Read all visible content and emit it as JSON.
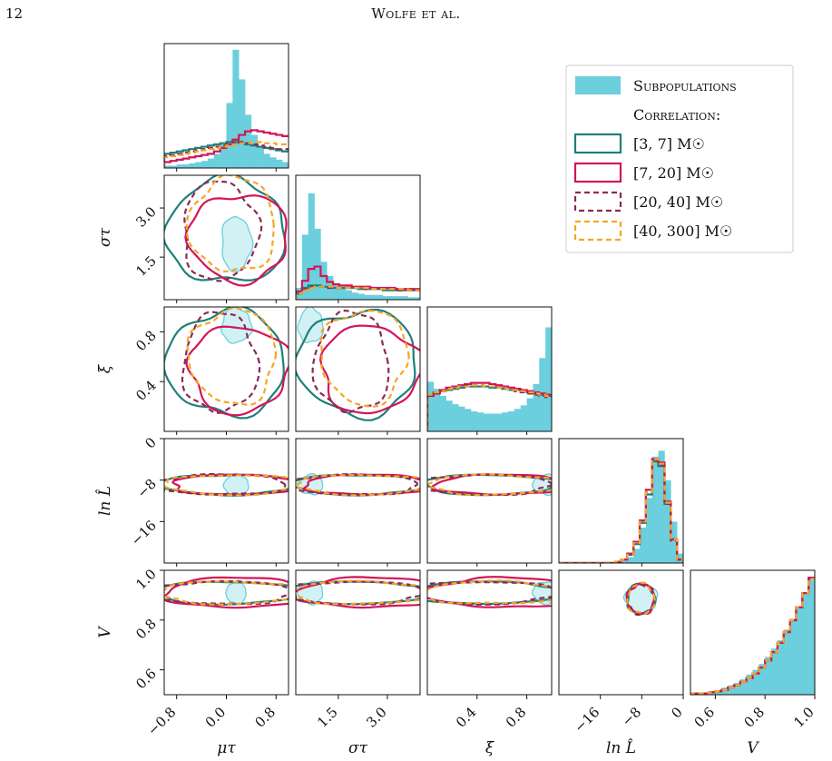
{
  "page": {
    "number": "12",
    "running_head": "Wolfe et al."
  },
  "chart_data": {
    "type": "corner",
    "parameters": [
      {
        "key": "mu_tau",
        "label": "μτ",
        "range": [
          -1.0,
          1.0
        ],
        "ticks": [
          -0.8,
          0.0,
          0.8
        ],
        "tick_labels": [
          "−0.8",
          "0.0",
          "0.8"
        ]
      },
      {
        "key": "sigma_tau",
        "label": "στ",
        "range": [
          0.2,
          4.0
        ],
        "ticks": [
          1.5,
          3.0
        ],
        "tick_labels": [
          "1.5",
          "3.0"
        ]
      },
      {
        "key": "xi",
        "label": "ξ",
        "range": [
          0.0,
          1.0
        ],
        "ticks": [
          0.4,
          0.8
        ],
        "tick_labels": [
          "0.4",
          "0.8"
        ]
      },
      {
        "key": "lnL",
        "label": "ln L̂",
        "range": [
          -24,
          0
        ],
        "ticks": [
          -16,
          -8,
          0
        ],
        "tick_labels": [
          "−16",
          "−8",
          "0"
        ]
      },
      {
        "key": "nu",
        "label": "V",
        "range": [
          0.5,
          1.0
        ],
        "ticks": [
          0.6,
          0.8,
          1.0
        ],
        "tick_labels": [
          "0.6",
          "0.8",
          "1.0"
        ]
      }
    ],
    "legend": {
      "placement": "top-right",
      "entries": [
        {
          "label": "Subpopulations",
          "style": "filled",
          "color": "#6bcfdd"
        },
        {
          "label": "Correlation:",
          "style": "heading"
        },
        {
          "label": "[3, 7] M☉",
          "style": "solid",
          "color": "#1e8079"
        },
        {
          "label": "[7, 20] M☉",
          "style": "solid",
          "color": "#d4145a"
        },
        {
          "label": "[20, 40] M☉",
          "style": "dashed",
          "color": "#8c2a55"
        },
        {
          "label": "[40, 300] M☉",
          "style": "dashed",
          "color": "#f5a623"
        }
      ]
    },
    "series": [
      {
        "key": "subpop",
        "color": "#6bcfdd",
        "fill": true,
        "dashed": false,
        "marginals": {
          "mu_tau": [
            0.02,
            0.02,
            0.03,
            0.03,
            0.04,
            0.05,
            0.06,
            0.08,
            0.12,
            0.2,
            0.55,
            1.0,
            0.75,
            0.45,
            0.28,
            0.18,
            0.12,
            0.09,
            0.07,
            0.05
          ],
          "sigma_tau": [
            0.1,
            0.55,
            0.9,
            0.6,
            0.32,
            0.2,
            0.14,
            0.1,
            0.08,
            0.06,
            0.05,
            0.04,
            0.04,
            0.04,
            0.03,
            0.03,
            0.03,
            0.03,
            0.02,
            0.02
          ],
          "xi": [
            0.42,
            0.36,
            0.3,
            0.26,
            0.23,
            0.21,
            0.19,
            0.17,
            0.16,
            0.15,
            0.15,
            0.15,
            0.16,
            0.17,
            0.19,
            0.22,
            0.28,
            0.4,
            0.62,
            0.88
          ],
          "lnL": [
            0,
            0,
            0,
            0,
            0,
            0,
            0,
            0,
            0,
            0.01,
            0.02,
            0.05,
            0.12,
            0.3,
            0.55,
            0.9,
            0.95,
            0.7,
            0.35,
            0.08
          ],
          "nu": [
            0.01,
            0.01,
            0.02,
            0.03,
            0.04,
            0.06,
            0.08,
            0.1,
            0.13,
            0.17,
            0.21,
            0.26,
            0.32,
            0.39,
            0.46,
            0.55,
            0.64,
            0.74,
            0.86,
            0.97
          ]
        }
      },
      {
        "key": "c3_7",
        "color": "#1e8079",
        "fill": false,
        "dashed": false,
        "marginals": {
          "mu_tau": [
            0.12,
            0.13,
            0.14,
            0.15,
            0.16,
            0.17,
            0.18,
            0.19,
            0.2,
            0.21,
            0.22,
            0.22,
            0.21,
            0.2,
            0.19,
            0.18,
            0.17,
            0.16,
            0.15,
            0.14
          ],
          "sigma_tau": [
            0.05,
            0.1,
            0.12,
            0.12,
            0.11,
            0.11,
            0.1,
            0.1,
            0.1,
            0.1,
            0.09,
            0.09,
            0.09,
            0.09,
            0.08,
            0.08,
            0.08,
            0.08,
            0.08,
            0.08
          ],
          "xi": [
            0.3,
            0.32,
            0.34,
            0.35,
            0.36,
            0.37,
            0.38,
            0.38,
            0.38,
            0.38,
            0.37,
            0.37,
            0.36,
            0.35,
            0.35,
            0.34,
            0.33,
            0.32,
            0.31,
            0.3
          ],
          "lnL": [
            0,
            0,
            0,
            0,
            0,
            0,
            0,
            0,
            0,
            0.01,
            0.03,
            0.07,
            0.16,
            0.34,
            0.58,
            0.86,
            0.82,
            0.5,
            0.2,
            0.03
          ],
          "nu": [
            0.01,
            0.01,
            0.01,
            0.02,
            0.03,
            0.04,
            0.06,
            0.08,
            0.11,
            0.14,
            0.18,
            0.23,
            0.29,
            0.36,
            0.44,
            0.53,
            0.63,
            0.74,
            0.86,
            0.98
          ]
        }
      },
      {
        "key": "c7_20",
        "color": "#d4145a",
        "fill": false,
        "dashed": false,
        "marginals": {
          "mu_tau": [
            0.05,
            0.06,
            0.07,
            0.08,
            0.09,
            0.1,
            0.11,
            0.12,
            0.14,
            0.17,
            0.2,
            0.24,
            0.28,
            0.31,
            0.32,
            0.31,
            0.3,
            0.29,
            0.28,
            0.27
          ],
          "sigma_tau": [
            0.07,
            0.16,
            0.26,
            0.28,
            0.2,
            0.15,
            0.13,
            0.12,
            0.12,
            0.11,
            0.11,
            0.11,
            0.1,
            0.1,
            0.1,
            0.1,
            0.09,
            0.09,
            0.09,
            0.09
          ],
          "xi": [
            0.31,
            0.33,
            0.35,
            0.37,
            0.38,
            0.39,
            0.4,
            0.41,
            0.41,
            0.41,
            0.4,
            0.39,
            0.38,
            0.37,
            0.36,
            0.35,
            0.34,
            0.33,
            0.32,
            0.31
          ],
          "lnL": [
            0,
            0,
            0,
            0,
            0,
            0,
            0,
            0,
            0,
            0.01,
            0.03,
            0.08,
            0.18,
            0.36,
            0.62,
            0.88,
            0.85,
            0.52,
            0.2,
            0.03
          ],
          "nu": [
            0.01,
            0.01,
            0.01,
            0.02,
            0.03,
            0.04,
            0.06,
            0.08,
            0.11,
            0.14,
            0.18,
            0.23,
            0.29,
            0.36,
            0.44,
            0.53,
            0.63,
            0.74,
            0.86,
            0.99
          ]
        }
      },
      {
        "key": "c20_40",
        "color": "#8c2a55",
        "fill": false,
        "dashed": true,
        "marginals": {
          "mu_tau": [
            0.1,
            0.11,
            0.12,
            0.13,
            0.14,
            0.15,
            0.16,
            0.17,
            0.18,
            0.19,
            0.2,
            0.21,
            0.22,
            0.21,
            0.2,
            0.19,
            0.18,
            0.17,
            0.16,
            0.16
          ],
          "sigma_tau": [
            0.05,
            0.09,
            0.11,
            0.11,
            0.11,
            0.1,
            0.1,
            0.1,
            0.1,
            0.1,
            0.1,
            0.09,
            0.09,
            0.09,
            0.09,
            0.09,
            0.08,
            0.08,
            0.08,
            0.08
          ],
          "xi": [
            0.3,
            0.32,
            0.34,
            0.36,
            0.37,
            0.38,
            0.39,
            0.39,
            0.39,
            0.38,
            0.38,
            0.37,
            0.36,
            0.35,
            0.34,
            0.33,
            0.32,
            0.31,
            0.3,
            0.29
          ],
          "lnL": [
            0,
            0,
            0,
            0,
            0,
            0,
            0,
            0,
            0,
            0.01,
            0.03,
            0.07,
            0.17,
            0.35,
            0.6,
            0.87,
            0.83,
            0.5,
            0.19,
            0.03
          ],
          "nu": [
            0.01,
            0.01,
            0.01,
            0.02,
            0.03,
            0.04,
            0.06,
            0.08,
            0.11,
            0.14,
            0.18,
            0.23,
            0.29,
            0.36,
            0.44,
            0.53,
            0.63,
            0.74,
            0.86,
            0.98
          ]
        }
      },
      {
        "key": "c40_300",
        "color": "#f5a623",
        "fill": false,
        "dashed": true,
        "marginals": {
          "mu_tau": [
            0.09,
            0.1,
            0.11,
            0.12,
            0.13,
            0.14,
            0.15,
            0.16,
            0.17,
            0.18,
            0.19,
            0.2,
            0.21,
            0.21,
            0.22,
            0.22,
            0.21,
            0.21,
            0.2,
            0.2
          ],
          "sigma_tau": [
            0.05,
            0.08,
            0.1,
            0.11,
            0.11,
            0.11,
            0.1,
            0.1,
            0.1,
            0.1,
            0.1,
            0.1,
            0.09,
            0.09,
            0.09,
            0.09,
            0.09,
            0.09,
            0.08,
            0.08
          ],
          "xi": [
            0.31,
            0.33,
            0.34,
            0.36,
            0.37,
            0.38,
            0.38,
            0.39,
            0.39,
            0.38,
            0.38,
            0.37,
            0.36,
            0.35,
            0.35,
            0.34,
            0.33,
            0.32,
            0.31,
            0.3
          ],
          "lnL": [
            0,
            0,
            0,
            0,
            0,
            0,
            0,
            0,
            0,
            0.01,
            0.03,
            0.07,
            0.17,
            0.35,
            0.6,
            0.88,
            0.84,
            0.51,
            0.2,
            0.03
          ],
          "nu": [
            0.01,
            0.01,
            0.01,
            0.02,
            0.03,
            0.04,
            0.06,
            0.08,
            0.11,
            0.14,
            0.18,
            0.23,
            0.29,
            0.36,
            0.44,
            0.53,
            0.63,
            0.74,
            0.86,
            0.98
          ]
        }
      }
    ]
  }
}
